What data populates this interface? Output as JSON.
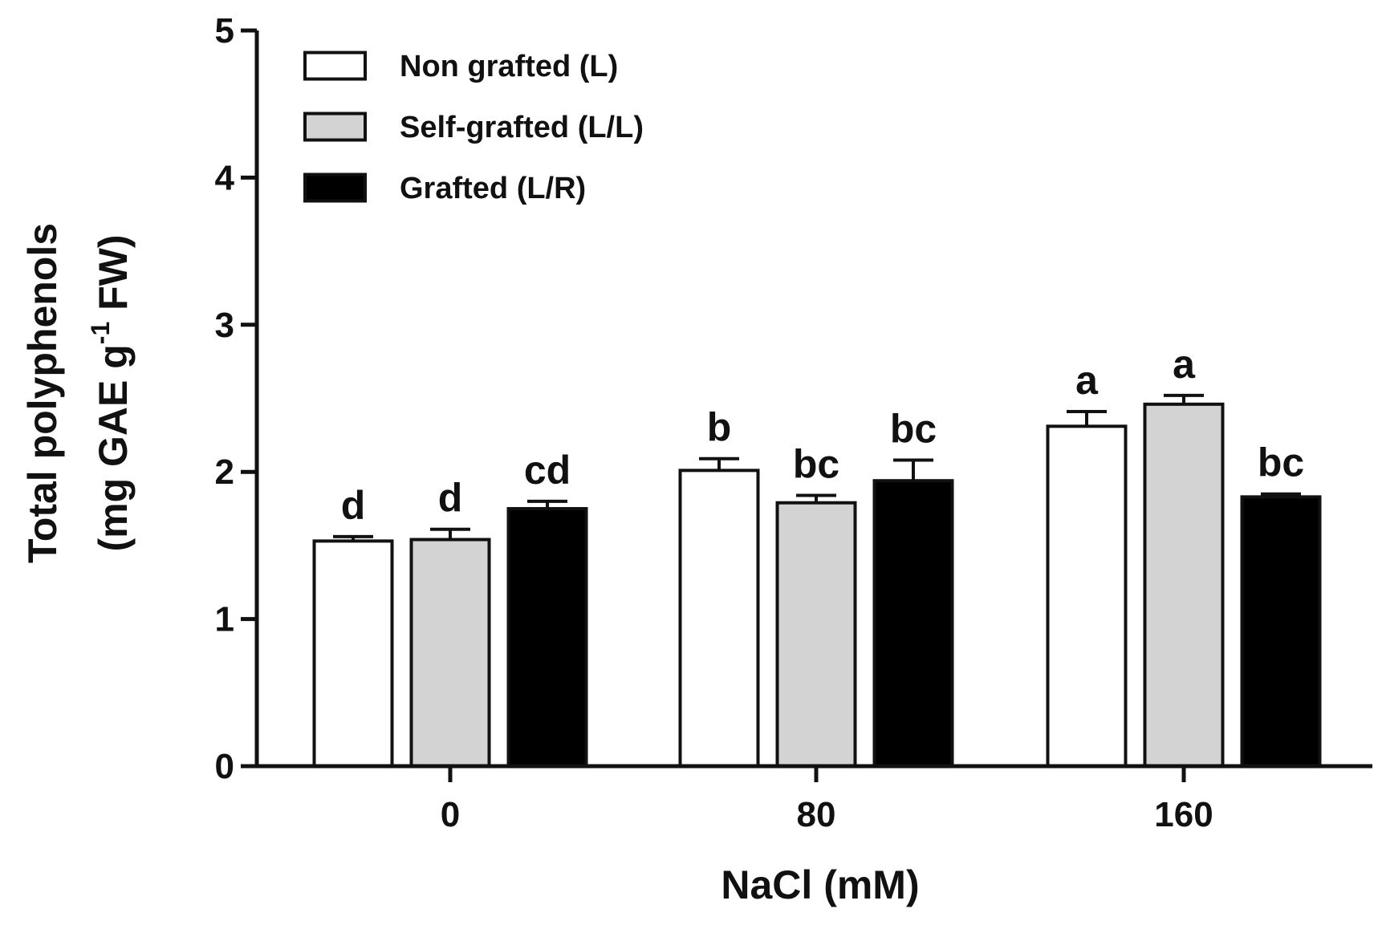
{
  "chart_data": {
    "type": "bar",
    "title": "",
    "xlabel": "NaCl (mM)",
    "ylabel_line1": "Total polyphenols",
    "ylabel_line2_prefix": "(mg GAE g",
    "ylabel_line2_sup": "-1",
    "ylabel_line2_suffix": " FW)",
    "ylim": [
      0,
      5
    ],
    "yticks": [
      "0",
      "1",
      "2",
      "3",
      "4",
      "5"
    ],
    "categories": [
      "0",
      "80",
      "160"
    ],
    "series": [
      {
        "name": "Non grafted (L)",
        "color": "#ffffff",
        "values": [
          1.53,
          2.01,
          2.31
        ],
        "errors": [
          0.03,
          0.08,
          0.1
        ],
        "letters": [
          "d",
          "b",
          "a"
        ]
      },
      {
        "name": "Self-grafted (L/L)",
        "color": "#d3d3d3",
        "values": [
          1.54,
          1.79,
          2.46
        ],
        "errors": [
          0.07,
          0.05,
          0.06
        ],
        "letters": [
          "d",
          "bc",
          "a"
        ]
      },
      {
        "name": "Grafted (L/R)",
        "color": "#000000",
        "values": [
          1.75,
          1.94,
          1.83
        ],
        "errors": [
          0.05,
          0.14,
          0.02
        ],
        "letters": [
          "cd",
          "bc",
          "bc"
        ]
      }
    ],
    "legend_position": "top-left"
  }
}
